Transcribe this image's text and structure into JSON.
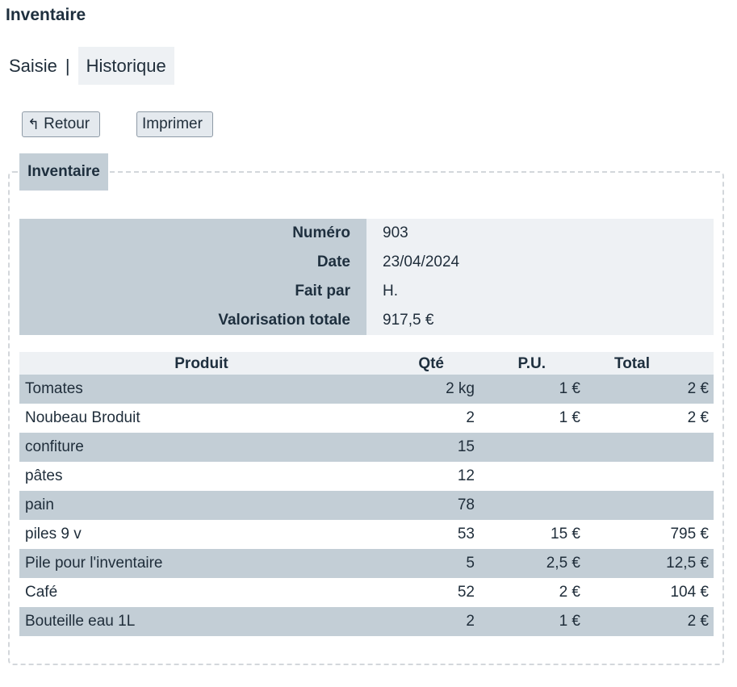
{
  "title": "Inventaire",
  "tabs": {
    "saisie": "Saisie",
    "separator": "|",
    "historique": "Historique"
  },
  "buttons": {
    "back_icon": "↰",
    "back": "Retour",
    "print": "Imprimer"
  },
  "section": {
    "legend": "Inventaire",
    "info": [
      {
        "label": "Numéro",
        "value": "903"
      },
      {
        "label": "Date",
        "value": "23/04/2024"
      },
      {
        "label": "Fait par",
        "value": "H."
      },
      {
        "label": "Valorisation totale",
        "value": "917,5 €"
      }
    ]
  },
  "table": {
    "headers": {
      "product": "Produit",
      "qty": "Qté",
      "pu": "P.U.",
      "total": "Total"
    },
    "rows": [
      {
        "product": "Tomates",
        "qty": "2 kg",
        "pu": "1 €",
        "total": "2 €"
      },
      {
        "product": "Noubeau Broduit",
        "qty": "2",
        "pu": "1 €",
        "total": "2 €"
      },
      {
        "product": "confiture",
        "qty": "15",
        "pu": "",
        "total": ""
      },
      {
        "product": "pâtes",
        "qty": "12",
        "pu": "",
        "total": ""
      },
      {
        "product": "pain",
        "qty": "78",
        "pu": "",
        "total": ""
      },
      {
        "product": "piles 9 v",
        "qty": "53",
        "pu": "15 €",
        "total": "795 €"
      },
      {
        "product": "Pile pour l'inventaire",
        "qty": "5",
        "pu": "2,5 €",
        "total": "12,5 €"
      },
      {
        "product": "Café",
        "qty": "52",
        "pu": "2 €",
        "total": "104 €"
      },
      {
        "product": "Bouteille eau 1L",
        "qty": "2",
        "pu": "1 €",
        "total": "2 €"
      }
    ]
  }
}
